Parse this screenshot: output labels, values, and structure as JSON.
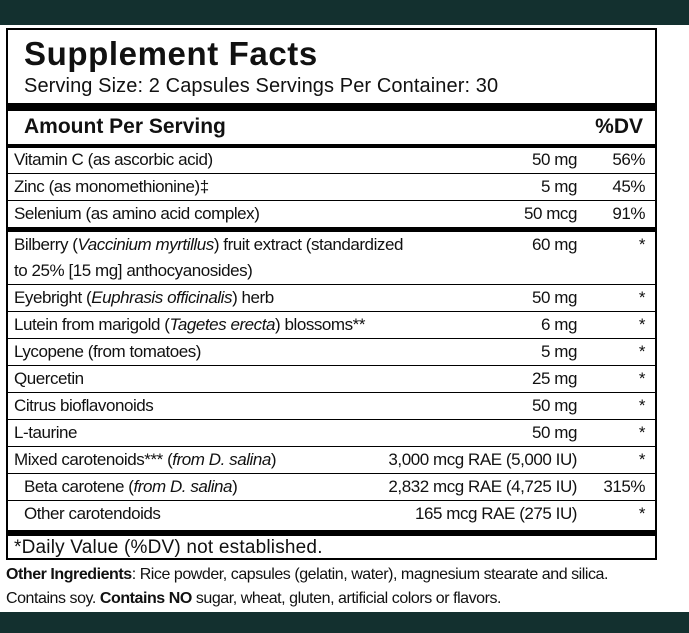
{
  "label": {
    "title": "Supplement Facts",
    "serving": "Serving Size: 2 Capsules  Servings Per Container: 30",
    "amount_per_serving": "Amount Per Serving",
    "dv_header": "%DV",
    "groups": [
      {
        "rows": [
          {
            "name": [
              [
                {
                  "text": "Vitamin C (as ascorbic acid)"
                }
              ]
            ],
            "amount": "50 mg",
            "dv": "56%"
          },
          {
            "name": [
              [
                {
                  "text": "Zinc (as monomethionine)‡"
                }
              ]
            ],
            "amount": "5 mg",
            "dv": "45%"
          },
          {
            "name": [
              [
                {
                  "text": "Selenium (as amino acid complex)"
                }
              ]
            ],
            "amount": "50 mcg",
            "dv": "91%"
          }
        ]
      },
      {
        "rows": [
          {
            "name": [
              [
                {
                  "text": "Bilberry ("
                },
                {
                  "text": "Vaccinium myrtillus",
                  "italic": true
                },
                {
                  "text": ") fruit extract (standardized"
                }
              ],
              [
                {
                  "text": "to 25% [15 mg] anthocyanosides)"
                }
              ]
            ],
            "amount": "60 mg",
            "dv": "*"
          },
          {
            "name": [
              [
                {
                  "text": "Eyebright ("
                },
                {
                  "text": "Euphrasis officinalis",
                  "italic": true
                },
                {
                  "text": ") herb"
                }
              ]
            ],
            "amount": "50 mg",
            "dv": "*"
          },
          {
            "name": [
              [
                {
                  "text": "Lutein from marigold ("
                },
                {
                  "text": "Tagetes erecta",
                  "italic": true
                },
                {
                  "text": ") blossoms**"
                }
              ]
            ],
            "amount": "6 mg",
            "dv": "*"
          },
          {
            "name": [
              [
                {
                  "text": "Lycopene (from tomatoes)"
                }
              ]
            ],
            "amount": "5 mg",
            "dv": "*"
          },
          {
            "name": [
              [
                {
                  "text": "Quercetin"
                }
              ]
            ],
            "amount": "25 mg",
            "dv": "*"
          },
          {
            "name": [
              [
                {
                  "text": "Citrus bioflavonoids"
                }
              ]
            ],
            "amount": "50 mg",
            "dv": "*"
          },
          {
            "name": [
              [
                {
                  "text": "L-taurine"
                }
              ]
            ],
            "amount": "50 mg",
            "dv": "*"
          },
          {
            "name": [
              [
                {
                  "text": "Mixed carotenoids*** ("
                },
                {
                  "text": "from D. salina",
                  "italic": true
                },
                {
                  "text": ")"
                }
              ]
            ],
            "amount": "3,000 mcg RAE (5,000 IU)",
            "dv": "*"
          },
          {
            "name": [
              [
                {
                  "text": "Beta carotene ("
                },
                {
                  "text": "from D. salina",
                  "italic": true
                },
                {
                  "text": ")"
                }
              ]
            ],
            "amount": "2,832 mcg RAE (4,725 IU)",
            "dv": "315%",
            "indent": true
          },
          {
            "name": [
              [
                {
                  "text": "Other carotendoids"
                }
              ]
            ],
            "amount": "165 mcg RAE (275 IU)",
            "dv": "*",
            "indent": true
          }
        ]
      }
    ],
    "footnote": "*Daily Value (%DV) not established."
  },
  "other_ingredients": [
    {
      "text": "Other Ingredients",
      "bold": true
    },
    {
      "text": ": Rice powder, capsules (gelatin, water), magnesium stearate and silica. Contains soy. "
    },
    {
      "text": "Contains NO",
      "bold": true
    },
    {
      "text": " sugar, wheat, gluten, artificial colors or flavors."
    }
  ]
}
